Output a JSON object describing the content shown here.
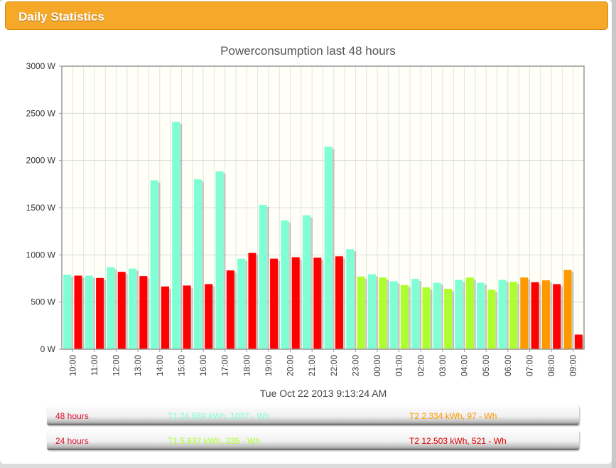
{
  "header": {
    "title": "Daily Statistics"
  },
  "chart_data": {
    "type": "bar",
    "title": "Powerconsumption last 48 hours",
    "xlabel": "Tue Oct 22 2013 9:13:24 AM",
    "ylabel": "",
    "ylim": [
      0,
      3000
    ],
    "yticks": [
      "0 W",
      "500 W",
      "1000 W",
      "1500 W",
      "2000 W",
      "2500 W",
      "3000 W"
    ],
    "grid": true,
    "categories": [
      "10:00",
      "11:00",
      "12:00",
      "13:00",
      "14:00",
      "15:00",
      "16:00",
      "17:00",
      "18:00",
      "19:00",
      "20:00",
      "21:00",
      "22:00",
      "23:00",
      "00:00",
      "01:00",
      "02:00",
      "03:00",
      "04:00",
      "05:00",
      "06:00",
      "07:00",
      "08:00",
      "09:00"
    ],
    "bars": [
      {
        "value": 790,
        "color": "#7fffd4"
      },
      {
        "value": 780,
        "color": "#ff0000"
      },
      {
        "value": 780,
        "color": "#7fffd4"
      },
      {
        "value": 755,
        "color": "#ff0000"
      },
      {
        "value": 870,
        "color": "#7fffd4"
      },
      {
        "value": 820,
        "color": "#ff0000"
      },
      {
        "value": 855,
        "color": "#7fffd4"
      },
      {
        "value": 775,
        "color": "#ff0000"
      },
      {
        "value": 1790,
        "color": "#7fffd4"
      },
      {
        "value": 665,
        "color": "#ff0000"
      },
      {
        "value": 2410,
        "color": "#7fffd4"
      },
      {
        "value": 675,
        "color": "#ff0000"
      },
      {
        "value": 1800,
        "color": "#7fffd4"
      },
      {
        "value": 690,
        "color": "#ff0000"
      },
      {
        "value": 1885,
        "color": "#7fffd4"
      },
      {
        "value": 835,
        "color": "#ff0000"
      },
      {
        "value": 960,
        "color": "#7fffd4"
      },
      {
        "value": 1020,
        "color": "#ff0000"
      },
      {
        "value": 1530,
        "color": "#7fffd4"
      },
      {
        "value": 960,
        "color": "#ff0000"
      },
      {
        "value": 1365,
        "color": "#7fffd4"
      },
      {
        "value": 975,
        "color": "#ff0000"
      },
      {
        "value": 1420,
        "color": "#7fffd4"
      },
      {
        "value": 970,
        "color": "#ff0000"
      },
      {
        "value": 2145,
        "color": "#7fffd4"
      },
      {
        "value": 985,
        "color": "#ff0000"
      },
      {
        "value": 1060,
        "color": "#7fffd4"
      },
      {
        "value": 770,
        "color": "#adff2f"
      },
      {
        "value": 795,
        "color": "#7fffd4"
      },
      {
        "value": 760,
        "color": "#adff2f"
      },
      {
        "value": 720,
        "color": "#7fffd4"
      },
      {
        "value": 680,
        "color": "#adff2f"
      },
      {
        "value": 745,
        "color": "#7fffd4"
      },
      {
        "value": 655,
        "color": "#adff2f"
      },
      {
        "value": 705,
        "color": "#7fffd4"
      },
      {
        "value": 640,
        "color": "#adff2f"
      },
      {
        "value": 735,
        "color": "#7fffd4"
      },
      {
        "value": 760,
        "color": "#adff2f"
      },
      {
        "value": 705,
        "color": "#7fffd4"
      },
      {
        "value": 630,
        "color": "#adff2f"
      },
      {
        "value": 735,
        "color": "#7fffd4"
      },
      {
        "value": 715,
        "color": "#adff2f"
      },
      {
        "value": 760,
        "color": "#ff9900"
      },
      {
        "value": 710,
        "color": "#ff0000"
      },
      {
        "value": 730,
        "color": "#ff9900"
      },
      {
        "value": 690,
        "color": "#ff0000"
      },
      {
        "value": 840,
        "color": "#ff9900"
      },
      {
        "value": 155,
        "color": "#ff0000"
      }
    ]
  },
  "summary": [
    {
      "label": "48 hours",
      "t1": "T1 24.689 kWh, 1037 - Wh",
      "t2": "T2 2.334 kWh, 97 - Wh"
    },
    {
      "label": "24 hours",
      "t1": "T1 5.637 kWh, 235 - Wh",
      "t2": "T2 12.503 kWh, 521 - Wh"
    }
  ]
}
